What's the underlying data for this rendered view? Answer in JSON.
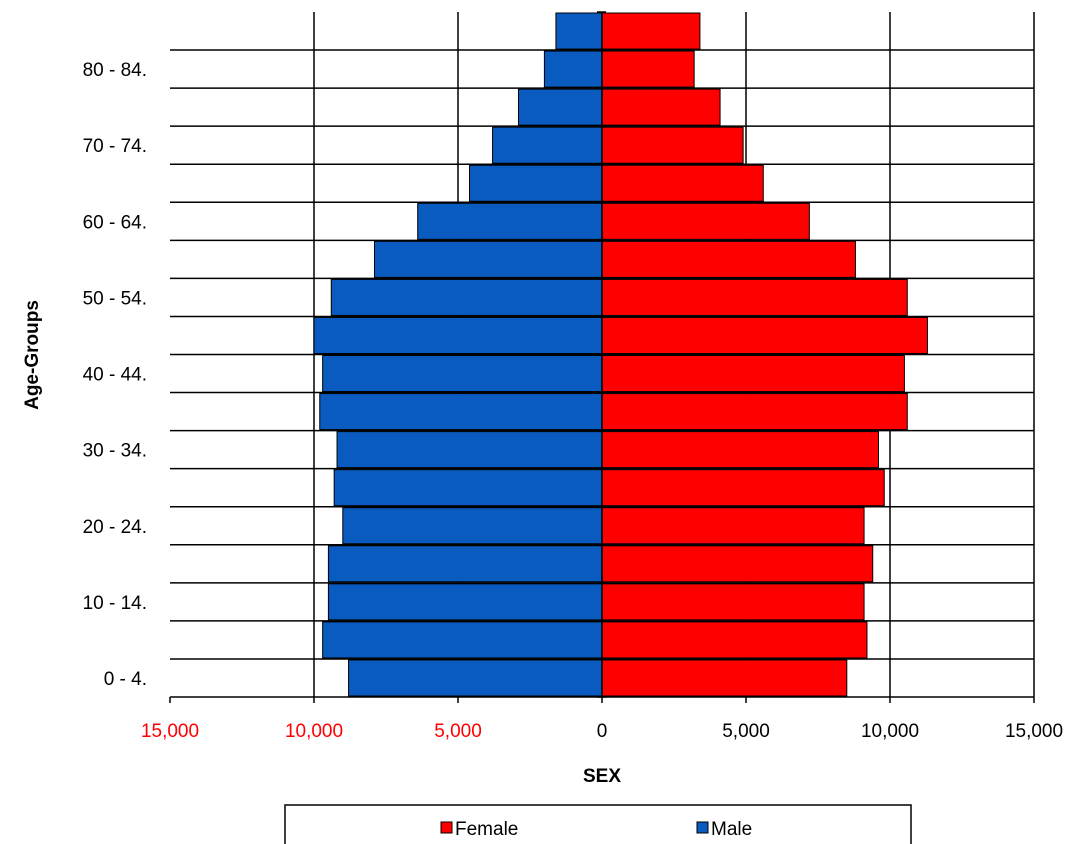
{
  "chart_data": {
    "type": "bar",
    "orientation": "horizontal",
    "layout": "population-pyramid",
    "xlabel": "SEX",
    "ylabel": "Age-Groups",
    "xlim": [
      -15000,
      15000
    ],
    "x_ticks": [
      "15,000",
      "10,000",
      "5,000",
      "0",
      "5,000",
      "10,000",
      "15,000"
    ],
    "x_tick_colors": [
      "#ff0000",
      "#ff0000",
      "#ff0000",
      "#000000",
      "#000000",
      "#000000",
      "#000000"
    ],
    "y_tick_labels": [
      "0 - 4.",
      "10 - 14.",
      "20 - 24.",
      "30 - 34.",
      "40 - 44.",
      "50 - 54.",
      "60 - 64.",
      "70 - 74.",
      "80 - 84."
    ],
    "y_tick_label_bands": [
      0,
      2,
      4,
      6,
      8,
      10,
      12,
      14,
      16
    ],
    "band_count": 18,
    "grid": true,
    "legend_position": "bottom",
    "series": [
      {
        "name": "Female",
        "color": "#ff0000",
        "side": "right",
        "values": [
          8500,
          9200,
          9100,
          9400,
          9100,
          9800,
          9600,
          10600,
          10500,
          11300,
          10600,
          8800,
          7200,
          5600,
          4900,
          4100,
          3200,
          3400
        ]
      },
      {
        "name": "Male",
        "color": "#0a5bc0",
        "side": "left",
        "values": [
          8800,
          9700,
          9500,
          9500,
          9000,
          9300,
          9200,
          9800,
          9700,
          10000,
          9400,
          7900,
          6400,
          4600,
          3800,
          2900,
          2000,
          1600
        ]
      }
    ]
  }
}
